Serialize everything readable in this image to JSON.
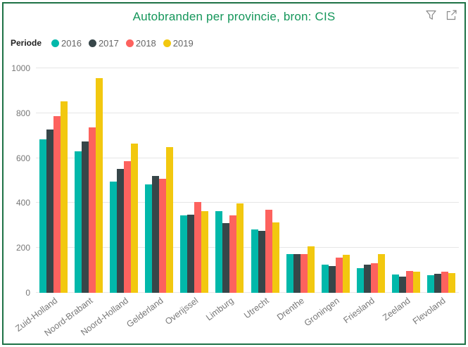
{
  "header": {
    "title": "Autobranden per provincie, bron: CIS"
  },
  "legend": {
    "title": "Periode"
  },
  "icons": {
    "filter": "filter-funnel",
    "focus": "focus-mode"
  },
  "colors": {
    "border": "#1E7145",
    "title": "#14965A",
    "axis_text": "#777777",
    "legend_text": "#666666",
    "gridline": "#E6E6E6",
    "icon": "#8A8A8A",
    "background": "#FFFFFF"
  },
  "chart_data": {
    "type": "bar",
    "title": "Autobranden per provincie, bron: CIS",
    "xlabel": "",
    "ylabel": "",
    "ylim": [
      0,
      1000
    ],
    "yticks": [
      0,
      200,
      400,
      600,
      800,
      1000
    ],
    "grid": true,
    "legend_position": "top-left",
    "legend_title": "Periode",
    "categories": [
      "Zuid-Holland",
      "Noord-Brabant",
      "Noord-Holland",
      "Gelderland",
      "Overijssel",
      "Limburg",
      "Utrecht",
      "Drenthe",
      "Groningen",
      "Friesland",
      "Zeeland",
      "Flevoland"
    ],
    "series": [
      {
        "name": "2016",
        "color": "#01B8AA",
        "values": [
          683,
          630,
          494,
          483,
          345,
          365,
          282,
          173,
          127,
          111,
          82,
          78
        ]
      },
      {
        "name": "2017",
        "color": "#374649",
        "values": [
          727,
          675,
          553,
          520,
          348,
          311,
          275,
          172,
          120,
          124,
          73,
          86
        ]
      },
      {
        "name": "2018",
        "color": "#FD625E",
        "values": [
          787,
          737,
          587,
          508,
          403,
          344,
          371,
          171,
          158,
          131,
          98,
          94
        ]
      },
      {
        "name": "2019",
        "color": "#F2C80F",
        "values": [
          852,
          956,
          666,
          649,
          365,
          399,
          313,
          207,
          168,
          174,
          95,
          87
        ]
      }
    ]
  }
}
